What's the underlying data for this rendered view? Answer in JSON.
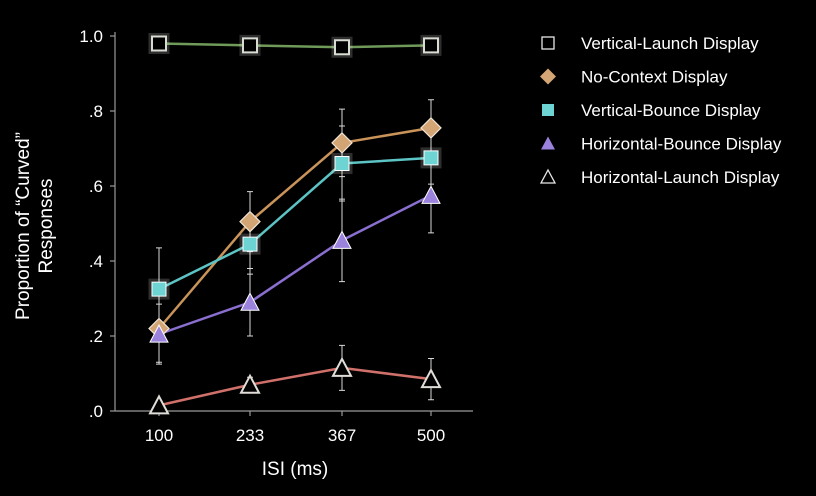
{
  "chart_data": {
    "type": "line",
    "title": "",
    "xlabel": "ISI (ms)",
    "ylabel_line1": "Proportion of “Curved”",
    "ylabel_line2": "Responses",
    "x": [
      100,
      233,
      367,
      500
    ],
    "x_tick_labels": [
      "100",
      "233",
      "367",
      "500"
    ],
    "ylim": [
      0,
      1.0
    ],
    "y_ticks": [
      0,
      0.2,
      0.4,
      0.6,
      0.8,
      1.0
    ],
    "y_tick_labels": [
      ".0",
      ".2",
      ".4",
      ".6",
      ".8",
      "1.0"
    ],
    "grid": false,
    "legend_position": "top-right",
    "series": [
      {
        "name": "Vertical-Launch Display",
        "marker": "square-open",
        "line_color": "#6f9a5a",
        "marker_color": "#d8dcd2",
        "values": [
          0.98,
          0.975,
          0.97,
          0.975
        ],
        "errors": [
          0.01,
          0.01,
          0.01,
          0.01
        ]
      },
      {
        "name": "No-Context Display",
        "marker": "diamond",
        "line_color": "#c9935a",
        "marker_color": "#d4a574",
        "values": [
          0.22,
          0.505,
          0.715,
          0.755
        ],
        "errors": [
          0.09,
          0.08,
          0.09,
          0.075
        ]
      },
      {
        "name": "Vertical-Bounce Display",
        "marker": "square",
        "line_color": "#5cc4c4",
        "marker_color": "#6ed3d3",
        "values": [
          0.325,
          0.445,
          0.66,
          0.675
        ],
        "errors": [
          0.11,
          0.08,
          0.1,
          0.07
        ]
      },
      {
        "name": "Horizontal-Bounce Display",
        "marker": "triangle",
        "line_color": "#8a6fd0",
        "marker_color": "#9a82dd",
        "values": [
          0.205,
          0.29,
          0.455,
          0.575
        ],
        "errors": [
          0.08,
          0.09,
          0.11,
          0.1
        ]
      },
      {
        "name": "Horizontal-Launch Display",
        "marker": "triangle-open",
        "line_color": "#d0706a",
        "marker_color": "#e0dcd8",
        "values": [
          0.015,
          0.07,
          0.115,
          0.085
        ],
        "errors": [
          0.01,
          0.02,
          0.06,
          0.055
        ]
      }
    ]
  }
}
